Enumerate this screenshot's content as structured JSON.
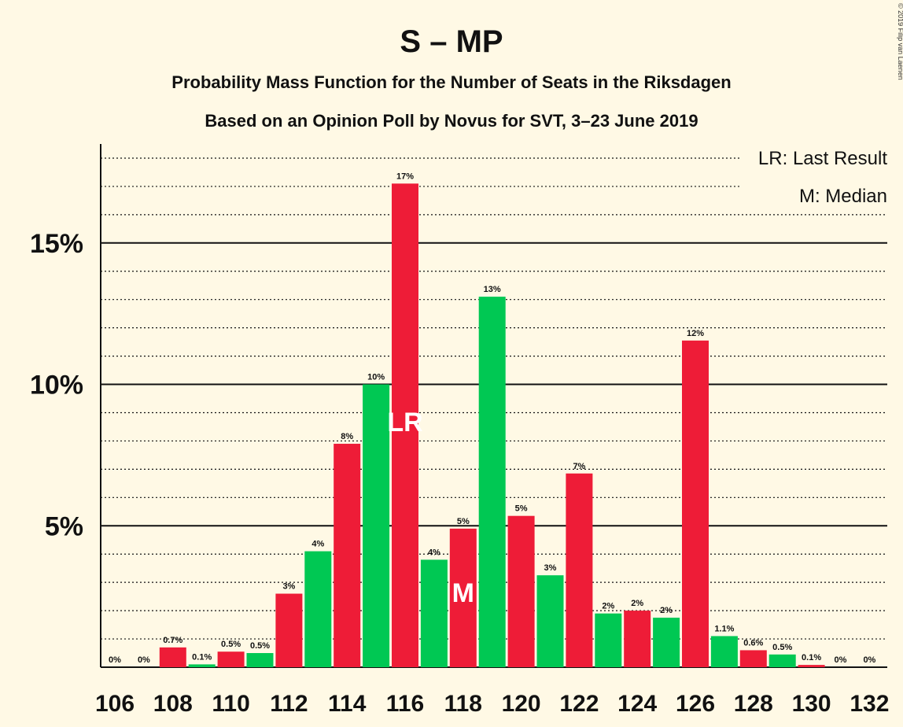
{
  "colors": {
    "background": "#fff9e5",
    "party_a": "#ee1c37",
    "party_b": "#00c853",
    "text": "#111111",
    "mark_text": "#ffffff"
  },
  "chart_data": {
    "type": "bar",
    "title": "S – MP",
    "subtitle": "Probability Mass Function for the Number of Seats in the Riksdagen",
    "subtitle2": "Based on an Opinion Poll by Novus for SVT, 3–23 June 2019",
    "copyright": "© 2019 Filip van Laenen",
    "legend": {
      "lr": "LR: Last Result",
      "m": "M: Median",
      "position": "top-right"
    },
    "ylim": [
      0,
      18.5
    ],
    "y_ticks": [
      {
        "value": 5,
        "label": "5%"
      },
      {
        "value": 10,
        "label": "10%"
      },
      {
        "value": 15,
        "label": "15%"
      }
    ],
    "minor_grid_step": 1,
    "x": [
      106,
      107,
      108,
      109,
      110,
      111,
      112,
      113,
      114,
      115,
      116,
      117,
      118,
      119,
      120,
      121,
      122,
      123,
      124,
      125,
      126,
      127,
      128,
      129,
      130,
      131,
      132
    ],
    "x_tick_labels": [
      "106",
      "108",
      "110",
      "112",
      "114",
      "116",
      "118",
      "120",
      "122",
      "124",
      "126",
      "128",
      "130",
      "132"
    ],
    "values": [
      0,
      0,
      0.7,
      0.1,
      0.55,
      0.5,
      2.6,
      4.1,
      7.9,
      10.0,
      17.1,
      3.8,
      4.9,
      13.1,
      5.35,
      3.25,
      6.85,
      1.9,
      2.0,
      1.75,
      11.55,
      1.1,
      0.6,
      0.45,
      0.08,
      0,
      0
    ],
    "labels": [
      "0%",
      "0%",
      "0.7%",
      "0.1%",
      "0.5%",
      "0.5%",
      "3%",
      "4%",
      "8%",
      "10%",
      "17%",
      "4%",
      "5%",
      "13%",
      "5%",
      "3%",
      "7%",
      "2%",
      "2%",
      "2%",
      "12%",
      "1.1%",
      "0.6%",
      "0.5%",
      "0.1%",
      "0%",
      "0%"
    ],
    "colors": [
      "red",
      "red",
      "red",
      "green",
      "red",
      "green",
      "red",
      "green",
      "red",
      "green",
      "red",
      "green",
      "red",
      "green",
      "red",
      "green",
      "red",
      "green",
      "red",
      "green",
      "red",
      "green",
      "red",
      "green",
      "red",
      "red",
      "red"
    ],
    "markers": [
      {
        "seat": 116,
        "text": "LR"
      },
      {
        "seat": 118,
        "text": "M"
      }
    ]
  }
}
